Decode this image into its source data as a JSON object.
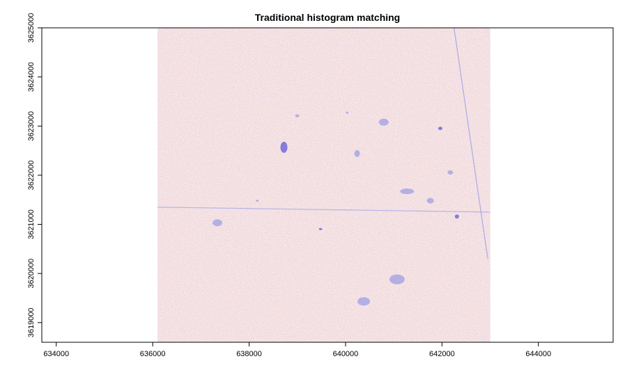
{
  "chart_data": {
    "type": "heatmap",
    "title": "Traditional histogram matching",
    "xlabel": "",
    "ylabel": "",
    "xlim": [
      633700,
      645550
    ],
    "ylim": [
      3618600,
      3625000
    ],
    "xticks": [
      634000,
      636000,
      638000,
      640000,
      642000,
      644000
    ],
    "yticks": [
      3619000,
      3620000,
      3621000,
      3622000,
      3623000,
      3624000,
      3625000
    ],
    "xtick_labels": [
      "634000",
      "636000",
      "638000",
      "640000",
      "642000",
      "644000"
    ],
    "ytick_labels": [
      "3619000",
      "3620000",
      "3621000",
      "3622000",
      "3623000",
      "3624000",
      "3625000"
    ],
    "raster_extent": {
      "xmin": 636100,
      "xmax": 643000,
      "ymin": 3618600,
      "ymax": 3625000
    },
    "grid": false,
    "legend": "none",
    "colors": {
      "low": "#0000cc",
      "mid": "#ffffff",
      "high": "#cc0000",
      "background_tint": "#fbe6e2",
      "frame": "#000000"
    }
  }
}
